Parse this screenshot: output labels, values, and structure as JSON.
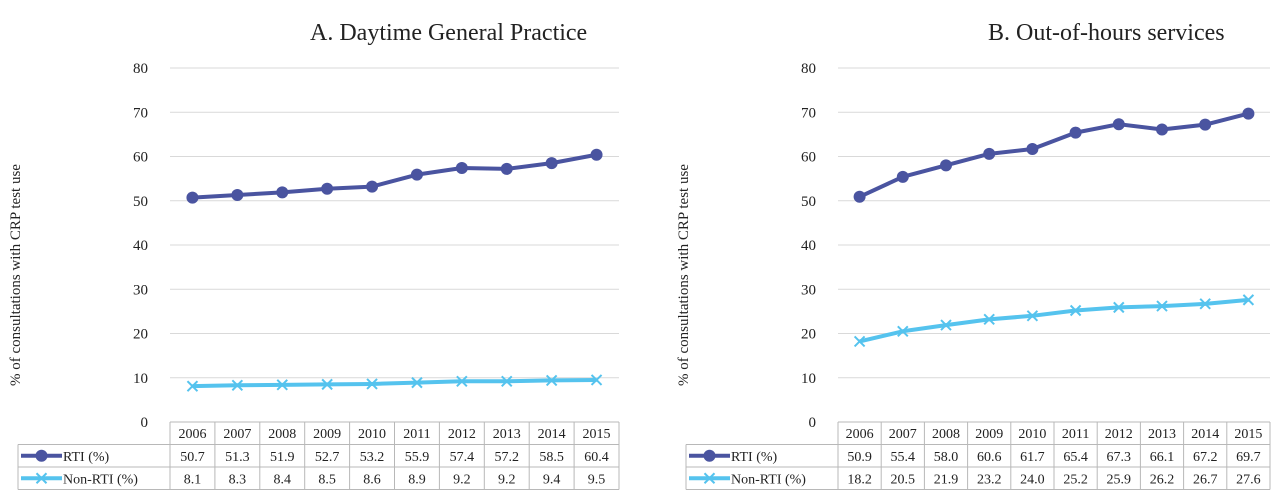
{
  "chart_data": [
    {
      "type": "line",
      "title": "A. Daytime General Practice",
      "ylabel": "% of consultations with CRP test use",
      "ylim": [
        0,
        80
      ],
      "yticks": [
        0,
        10,
        20,
        30,
        40,
        50,
        60,
        70,
        80
      ],
      "grid": true,
      "legend": "data-table",
      "categories": [
        "2006",
        "2007",
        "2008",
        "2009",
        "2010",
        "2011",
        "2012",
        "2013",
        "2014",
        "2015"
      ],
      "series": [
        {
          "name": "RTI (%)",
          "color": "#4a54a0",
          "marker": "circle",
          "values": [
            50.7,
            51.3,
            51.9,
            52.7,
            53.2,
            55.9,
            57.4,
            57.2,
            58.5,
            60.4
          ],
          "labels": [
            "50.7",
            "51.3",
            "51.9",
            "52.7",
            "53.2",
            "55.9",
            "57.4",
            "57.2",
            "58.5",
            "60.4"
          ]
        },
        {
          "name": "Non-RTI (%)",
          "color": "#55c3ee",
          "marker": "x",
          "values": [
            8.1,
            8.3,
            8.4,
            8.5,
            8.6,
            8.9,
            9.2,
            9.2,
            9.4,
            9.5
          ],
          "labels": [
            "8.1",
            "8.3",
            "8.4",
            "8.5",
            "8.6",
            "8.9",
            "9.2",
            "9.2",
            "9.4",
            "9.5"
          ]
        }
      ]
    },
    {
      "type": "line",
      "title": "B. Out-of-hours services",
      "ylabel": "% of consultations with CRP test use",
      "ylim": [
        0,
        80
      ],
      "yticks": [
        0,
        10,
        20,
        30,
        40,
        50,
        60,
        70,
        80
      ],
      "grid": true,
      "legend": "data-table",
      "categories": [
        "2006",
        "2007",
        "2008",
        "2009",
        "2010",
        "2011",
        "2012",
        "2013",
        "2014",
        "2015"
      ],
      "series": [
        {
          "name": "RTI (%)",
          "color": "#4a54a0",
          "marker": "circle",
          "values": [
            50.9,
            55.4,
            58.0,
            60.6,
            61.7,
            65.4,
            67.3,
            66.1,
            67.2,
            69.7
          ],
          "labels": [
            "50.9",
            "55.4",
            "58.0",
            "60.6",
            "61.7",
            "65.4",
            "67.3",
            "66.1",
            "67.2",
            "69.7"
          ]
        },
        {
          "name": "Non-RTI (%)",
          "color": "#55c3ee",
          "marker": "x",
          "values": [
            18.2,
            20.5,
            21.9,
            23.2,
            24.0,
            25.2,
            25.9,
            26.2,
            26.7,
            27.6
          ],
          "labels": [
            "18.2",
            "20.5",
            "21.9",
            "23.2",
            "24.0",
            "25.2",
            "25.9",
            "26.2",
            "26.7",
            "27.6"
          ]
        }
      ]
    }
  ]
}
